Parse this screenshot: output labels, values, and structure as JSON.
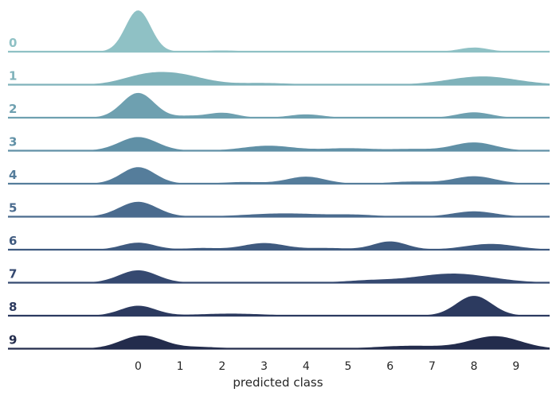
{
  "chart_data": {
    "type": "ridgeline",
    "title": "",
    "xlabel": "predicted class",
    "ylabel": "",
    "xlim": [
      -3.1,
      9.8
    ],
    "x_ticks": [
      "0",
      "1",
      "2",
      "3",
      "4",
      "5",
      "6",
      "7",
      "8",
      "9"
    ],
    "grid": false,
    "legend": "none",
    "density_scale": 52,
    "series": [
      {
        "name": "0",
        "color": "#8fc1c5",
        "components": [
          [
            0,
            0.3,
            1.0
          ],
          [
            8,
            0.35,
            0.1
          ],
          [
            2,
            0.4,
            0.03
          ]
        ]
      },
      {
        "name": "1",
        "color": "#7fb2ba",
        "components": [
          [
            0.8,
            0.7,
            0.27
          ],
          [
            0,
            0.5,
            0.1
          ],
          [
            8.2,
            0.8,
            0.2
          ],
          [
            3,
            0.6,
            0.04
          ]
        ]
      },
      {
        "name": "2",
        "color": "#6ea0b0",
        "components": [
          [
            0,
            0.38,
            0.6
          ],
          [
            2,
            0.35,
            0.12
          ],
          [
            4,
            0.4,
            0.08
          ],
          [
            8,
            0.4,
            0.13
          ],
          [
            1.2,
            0.3,
            0.04
          ]
        ]
      },
      {
        "name": "3",
        "color": "#6090a6",
        "components": [
          [
            0,
            0.45,
            0.33
          ],
          [
            3.1,
            0.6,
            0.12
          ],
          [
            5,
            0.6,
            0.06
          ],
          [
            8,
            0.5,
            0.2
          ],
          [
            6.5,
            0.5,
            0.04
          ]
        ]
      },
      {
        "name": "4",
        "color": "#557d9b",
        "components": [
          [
            0,
            0.4,
            0.4
          ],
          [
            4,
            0.45,
            0.17
          ],
          [
            8,
            0.5,
            0.18
          ],
          [
            2.5,
            0.5,
            0.04
          ],
          [
            6.5,
            0.5,
            0.05
          ]
        ]
      },
      {
        "name": "5",
        "color": "#4a6b8e",
        "components": [
          [
            0,
            0.45,
            0.36
          ],
          [
            3.5,
            0.9,
            0.08
          ],
          [
            5.2,
            0.5,
            0.04
          ],
          [
            8,
            0.5,
            0.13
          ]
        ]
      },
      {
        "name": "6",
        "color": "#3f5a7f",
        "components": [
          [
            0,
            0.4,
            0.17
          ],
          [
            3,
            0.5,
            0.16
          ],
          [
            6,
            0.4,
            0.2
          ],
          [
            8.4,
            0.6,
            0.14
          ],
          [
            1.5,
            0.4,
            0.04
          ],
          [
            4.5,
            0.5,
            0.04
          ]
        ]
      },
      {
        "name": "7",
        "color": "#354970",
        "components": [
          [
            0,
            0.45,
            0.3
          ],
          [
            7.5,
            0.9,
            0.22
          ],
          [
            5.5,
            0.6,
            0.05
          ]
        ]
      },
      {
        "name": "8",
        "color": "#2c3a5f",
        "components": [
          [
            0,
            0.42,
            0.24
          ],
          [
            8,
            0.42,
            0.48
          ],
          [
            2.2,
            0.8,
            0.05
          ],
          [
            6,
            0.5,
            0.02
          ]
        ]
      },
      {
        "name": "9",
        "color": "#232c4c",
        "components": [
          [
            0.1,
            0.5,
            0.32
          ],
          [
            8.5,
            0.6,
            0.3
          ],
          [
            6.5,
            0.8,
            0.07
          ],
          [
            1.5,
            0.5,
            0.04
          ]
        ]
      }
    ]
  }
}
